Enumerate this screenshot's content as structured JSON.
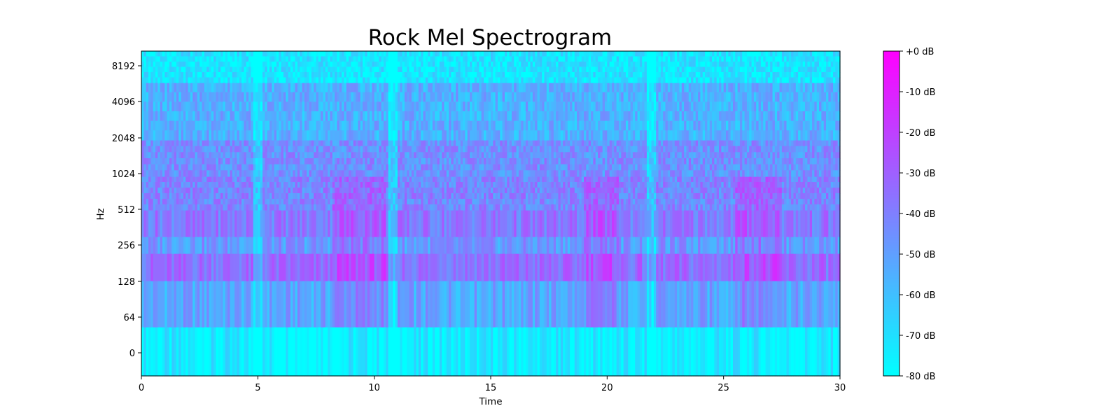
{
  "chart_data": {
    "type": "heatmap",
    "title": "Rock Mel Spectrogram",
    "xlabel": "Time",
    "ylabel": "Hz",
    "xlim": [
      0,
      30
    ],
    "x_ticks": [
      0,
      5,
      10,
      15,
      20,
      25,
      30
    ],
    "y_scale": "mel (log-like)",
    "y_ticks": [
      "0",
      "64",
      "128",
      "256",
      "512",
      "1024",
      "2048",
      "4096",
      "8192"
    ],
    "value_unit": "dB",
    "value_range": [
      -80,
      0
    ],
    "colormap": [
      "#00ffff",
      "#ff00ff"
    ],
    "colorbar": {
      "ticks": [
        0,
        -10,
        -20,
        -30,
        -40,
        -50,
        -60,
        -70,
        -80
      ],
      "labels": [
        "+0 dB",
        "-10 dB",
        "-20 dB",
        "-30 dB",
        "-40 dB",
        "-50 dB",
        "-60 dB",
        "-70 dB",
        "-80 dB"
      ]
    },
    "frequency_bands": [
      {
        "name": "below 64 Hz",
        "level_db": -75
      },
      {
        "name": "64-128 Hz",
        "level_db": -52
      },
      {
        "name": "128-256 Hz",
        "level_db": -35
      },
      {
        "name": "256-512 Hz",
        "level_db": -48
      },
      {
        "name": "512-1024 Hz",
        "level_db": -38
      },
      {
        "name": "1024-2048 Hz",
        "level_db": -42
      },
      {
        "name": "2048-4096 Hz",
        "level_db": -45
      },
      {
        "name": "4096-8192 Hz",
        "level_db": -55
      },
      {
        "name": "above 8192 Hz",
        "level_db": -72
      }
    ],
    "quiet_intervals": [
      [
        4.8,
        5.2
      ],
      [
        10.6,
        11.0
      ],
      [
        21.7,
        22.1
      ]
    ],
    "loud_intervals": [
      [
        8.2,
        10.5
      ],
      [
        19.0,
        20.5
      ],
      [
        25.5,
        27.5
      ]
    ]
  }
}
